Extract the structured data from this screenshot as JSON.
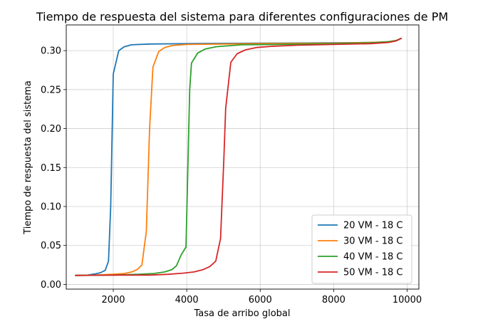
{
  "chart_data": {
    "type": "line",
    "title": "Tiempo de respuesta del sistema para diferentes configuraciones de PM",
    "xlabel": "Tasa de arribo global",
    "ylabel": "Tiempo de respuesta del sistema",
    "xlim": [
      720,
      10320
    ],
    "ylim": [
      -0.006,
      0.333
    ],
    "xticks": [
      {
        "value": 2000,
        "label": "2000"
      },
      {
        "value": 4000,
        "label": "4000"
      },
      {
        "value": 6000,
        "label": "6000"
      },
      {
        "value": 8000,
        "label": "8000"
      },
      {
        "value": 10000,
        "label": "10000"
      }
    ],
    "yticks": [
      {
        "value": 0.0,
        "label": "0.00"
      },
      {
        "value": 0.05,
        "label": "0.05"
      },
      {
        "value": 0.1,
        "label": "0.10"
      },
      {
        "value": 0.15,
        "label": "0.15"
      },
      {
        "value": 0.2,
        "label": "0.20"
      },
      {
        "value": 0.25,
        "label": "0.25"
      },
      {
        "value": 0.3,
        "label": "0.30"
      }
    ],
    "grid": true,
    "legend_position": "lower-right",
    "series": [
      {
        "name": "20 VM - 18 C",
        "color": "#1f77b4",
        "points": [
          [
            960,
            0.0115
          ],
          [
            1300,
            0.012
          ],
          [
            1500,
            0.0135
          ],
          [
            1650,
            0.015
          ],
          [
            1780,
            0.018
          ],
          [
            1870,
            0.03
          ],
          [
            1930,
            0.1
          ],
          [
            2000,
            0.27
          ],
          [
            2150,
            0.3
          ],
          [
            2300,
            0.305
          ],
          [
            2500,
            0.3075
          ],
          [
            3000,
            0.3085
          ],
          [
            4000,
            0.309
          ],
          [
            6000,
            0.3095
          ],
          [
            8000,
            0.31
          ],
          [
            9000,
            0.3105
          ],
          [
            9500,
            0.311
          ],
          [
            9700,
            0.3125
          ],
          [
            9850,
            0.316
          ]
        ]
      },
      {
        "name": "30 VM - 18 C",
        "color": "#ff7f0e",
        "points": [
          [
            960,
            0.0115
          ],
          [
            1500,
            0.012
          ],
          [
            2000,
            0.013
          ],
          [
            2300,
            0.014
          ],
          [
            2500,
            0.016
          ],
          [
            2650,
            0.019
          ],
          [
            2780,
            0.025
          ],
          [
            2900,
            0.068
          ],
          [
            2990,
            0.2
          ],
          [
            3080,
            0.279
          ],
          [
            3240,
            0.299
          ],
          [
            3400,
            0.304
          ],
          [
            3600,
            0.3065
          ],
          [
            4000,
            0.308
          ],
          [
            5000,
            0.3085
          ],
          [
            6000,
            0.309
          ],
          [
            8000,
            0.3095
          ],
          [
            9000,
            0.3105
          ],
          [
            9500,
            0.3115
          ],
          [
            9700,
            0.313
          ],
          [
            9850,
            0.316
          ]
        ]
      },
      {
        "name": "40 VM - 18 C",
        "color": "#2ca02c",
        "points": [
          [
            960,
            0.0115
          ],
          [
            2000,
            0.012
          ],
          [
            2700,
            0.013
          ],
          [
            3100,
            0.014
          ],
          [
            3400,
            0.016
          ],
          [
            3600,
            0.019
          ],
          [
            3720,
            0.024
          ],
          [
            3850,
            0.038
          ],
          [
            3980,
            0.048
          ],
          [
            4080,
            0.25
          ],
          [
            4130,
            0.284
          ],
          [
            4300,
            0.297
          ],
          [
            4500,
            0.302
          ],
          [
            4800,
            0.305
          ],
          [
            5500,
            0.3075
          ],
          [
            6500,
            0.308
          ],
          [
            8000,
            0.309
          ],
          [
            9000,
            0.31
          ],
          [
            9500,
            0.3115
          ],
          [
            9700,
            0.313
          ],
          [
            9850,
            0.316
          ]
        ]
      },
      {
        "name": "50 VM - 18 C",
        "color": "#d62728",
        "points": [
          [
            960,
            0.0115
          ],
          [
            2000,
            0.012
          ],
          [
            3000,
            0.012
          ],
          [
            3500,
            0.013
          ],
          [
            3900,
            0.0145
          ],
          [
            4200,
            0.016
          ],
          [
            4450,
            0.019
          ],
          [
            4630,
            0.023
          ],
          [
            4790,
            0.03
          ],
          [
            4920,
            0.059
          ],
          [
            5010,
            0.16
          ],
          [
            5060,
            0.226
          ],
          [
            5200,
            0.285
          ],
          [
            5370,
            0.296
          ],
          [
            5600,
            0.301
          ],
          [
            5900,
            0.304
          ],
          [
            6300,
            0.3055
          ],
          [
            7000,
            0.307
          ],
          [
            8000,
            0.308
          ],
          [
            9000,
            0.309
          ],
          [
            9500,
            0.3105
          ],
          [
            9700,
            0.3125
          ],
          [
            9850,
            0.316
          ]
        ]
      }
    ]
  }
}
